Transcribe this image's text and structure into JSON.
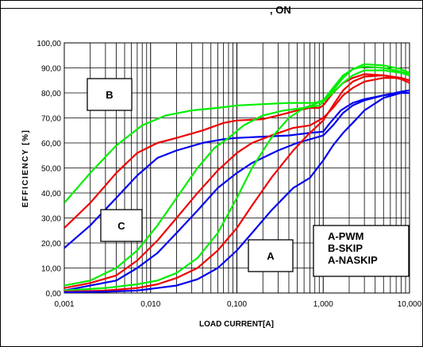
{
  "header_fragment": ", ON",
  "chart_data": {
    "type": "line",
    "x_scale": "log",
    "xlim": [
      0.001,
      10
    ],
    "ylim": [
      0,
      100
    ],
    "grid": true,
    "xlabel": "LOAD CURRENT[A]",
    "ylabel": "EFFICIENCY [%]",
    "x_tick_labels": [
      "0,001",
      "0,010",
      "0,100",
      "1,000",
      "10,000"
    ],
    "x_tick_values": [
      0.001,
      0.01,
      0.1,
      1,
      10
    ],
    "y_tick_labels": [
      "0,00",
      "10,00",
      "20,00",
      "30,00",
      "40,00",
      "50,00",
      "60,00",
      "70,00",
      "80,00",
      "90,00",
      "100,00"
    ],
    "y_tick_values": [
      0,
      10,
      20,
      30,
      40,
      50,
      60,
      70,
      80,
      90,
      100
    ],
    "box_labels": [
      "A",
      "B",
      "C"
    ],
    "legend_lines": [
      "A-PWM",
      "B-SKIP",
      "A-NASKIP"
    ],
    "series": [
      {
        "color": "#00ee00",
        "points": [
          [
            0.001,
            36
          ],
          [
            0.002,
            48
          ],
          [
            0.004,
            59
          ],
          [
            0.008,
            67
          ],
          [
            0.015,
            71
          ],
          [
            0.03,
            73
          ],
          [
            0.06,
            74
          ],
          [
            0.1,
            75
          ],
          [
            0.2,
            75.5
          ],
          [
            0.4,
            76
          ],
          [
            0.6,
            76
          ],
          [
            0.8,
            76
          ],
          [
            1,
            77
          ],
          [
            1.3,
            82
          ],
          [
            1.7,
            87
          ],
          [
            2.2,
            89.5
          ],
          [
            3,
            90.5
          ],
          [
            5,
            90
          ],
          [
            8,
            88.5
          ],
          [
            10,
            87.5
          ]
        ]
      },
      {
        "color": "#ee0000",
        "points": [
          [
            0.001,
            26
          ],
          [
            0.002,
            36
          ],
          [
            0.004,
            48
          ],
          [
            0.007,
            56
          ],
          [
            0.012,
            60
          ],
          [
            0.02,
            62
          ],
          [
            0.04,
            65
          ],
          [
            0.07,
            68
          ],
          [
            0.1,
            69
          ],
          [
            0.2,
            69.5
          ],
          [
            0.3,
            71
          ],
          [
            0.5,
            73
          ],
          [
            0.7,
            74
          ],
          [
            0.9,
            74
          ],
          [
            1,
            75
          ],
          [
            1.3,
            80
          ],
          [
            1.7,
            84
          ],
          [
            2.2,
            86
          ],
          [
            3,
            87.5
          ],
          [
            5,
            87
          ],
          [
            8,
            85.5
          ],
          [
            10,
            84
          ]
        ]
      },
      {
        "color": "#0000ee",
        "points": [
          [
            0.001,
            18
          ],
          [
            0.002,
            27
          ],
          [
            0.004,
            38
          ],
          [
            0.007,
            47
          ],
          [
            0.012,
            54
          ],
          [
            0.02,
            57
          ],
          [
            0.04,
            60
          ],
          [
            0.07,
            61.5
          ],
          [
            0.1,
            62
          ],
          [
            0.2,
            62.5
          ],
          [
            0.4,
            63
          ],
          [
            0.7,
            64
          ],
          [
            1,
            64.5
          ],
          [
            1.2,
            68
          ],
          [
            1.6,
            73
          ],
          [
            2.2,
            76
          ],
          [
            3,
            77.5
          ],
          [
            5,
            79
          ],
          [
            8,
            80
          ],
          [
            10,
            80
          ]
        ]
      },
      {
        "color": "#00ee00",
        "points": [
          [
            0.001,
            3
          ],
          [
            0.002,
            5
          ],
          [
            0.004,
            10
          ],
          [
            0.007,
            17
          ],
          [
            0.012,
            27
          ],
          [
            0.02,
            38
          ],
          [
            0.035,
            50
          ],
          [
            0.055,
            58
          ],
          [
            0.08,
            62
          ],
          [
            0.12,
            67
          ],
          [
            0.2,
            71
          ],
          [
            0.35,
            73
          ],
          [
            0.6,
            74
          ],
          [
            0.9,
            75
          ],
          [
            1.2,
            79
          ],
          [
            1.7,
            84
          ],
          [
            2.2,
            87
          ],
          [
            3,
            89
          ],
          [
            5,
            89
          ],
          [
            8,
            88
          ],
          [
            10,
            87
          ]
        ]
      },
      {
        "color": "#ee0000",
        "points": [
          [
            0.001,
            2
          ],
          [
            0.002,
            4
          ],
          [
            0.004,
            7
          ],
          [
            0.007,
            13
          ],
          [
            0.012,
            21
          ],
          [
            0.02,
            30
          ],
          [
            0.035,
            40
          ],
          [
            0.06,
            49
          ],
          [
            0.1,
            56
          ],
          [
            0.15,
            60
          ],
          [
            0.25,
            63
          ],
          [
            0.45,
            66
          ],
          [
            0.7,
            67
          ],
          [
            1,
            70
          ],
          [
            1.3,
            74
          ],
          [
            1.7,
            79
          ],
          [
            2.2,
            82
          ],
          [
            3,
            84.5
          ],
          [
            5,
            86
          ],
          [
            8,
            86
          ],
          [
            10,
            85
          ]
        ]
      },
      {
        "color": "#0000ee",
        "points": [
          [
            0.001,
            1
          ],
          [
            0.002,
            3
          ],
          [
            0.004,
            5
          ],
          [
            0.007,
            10
          ],
          [
            0.012,
            16
          ],
          [
            0.02,
            24
          ],
          [
            0.035,
            33
          ],
          [
            0.06,
            42
          ],
          [
            0.1,
            48
          ],
          [
            0.15,
            52
          ],
          [
            0.3,
            57
          ],
          [
            0.5,
            60
          ],
          [
            0.8,
            62
          ],
          [
            1,
            63
          ],
          [
            1.3,
            67
          ],
          [
            1.7,
            72
          ],
          [
            2.2,
            75
          ],
          [
            3,
            77
          ],
          [
            5,
            79
          ],
          [
            8,
            80.5
          ],
          [
            10,
            81
          ]
        ]
      },
      {
        "color": "#00ee00",
        "points": [
          [
            0.001,
            1
          ],
          [
            0.003,
            2
          ],
          [
            0.007,
            3.5
          ],
          [
            0.012,
            5
          ],
          [
            0.02,
            8
          ],
          [
            0.035,
            14
          ],
          [
            0.06,
            24
          ],
          [
            0.1,
            38
          ],
          [
            0.15,
            50
          ],
          [
            0.25,
            62
          ],
          [
            0.4,
            70
          ],
          [
            0.6,
            74
          ],
          [
            0.8,
            75.5
          ],
          [
            1,
            77
          ],
          [
            1.3,
            81
          ],
          [
            1.7,
            86
          ],
          [
            2.2,
            89.5
          ],
          [
            3,
            91.5
          ],
          [
            5,
            91
          ],
          [
            8,
            89.5
          ],
          [
            10,
            88
          ]
        ]
      },
      {
        "color": "#ee0000",
        "points": [
          [
            0.001,
            0.5
          ],
          [
            0.003,
            1
          ],
          [
            0.007,
            2
          ],
          [
            0.012,
            3.5
          ],
          [
            0.02,
            6
          ],
          [
            0.035,
            10
          ],
          [
            0.06,
            17
          ],
          [
            0.1,
            26
          ],
          [
            0.15,
            35
          ],
          [
            0.25,
            46
          ],
          [
            0.45,
            57
          ],
          [
            0.7,
            64
          ],
          [
            1,
            69
          ],
          [
            1.3,
            75
          ],
          [
            1.7,
            81
          ],
          [
            2.2,
            84.5
          ],
          [
            3,
            86.5
          ],
          [
            5,
            87
          ],
          [
            8,
            86
          ],
          [
            10,
            85
          ]
        ]
      },
      {
        "color": "#0000ee",
        "points": [
          [
            0.001,
            0.3
          ],
          [
            0.003,
            0.5
          ],
          [
            0.007,
            1
          ],
          [
            0.012,
            2
          ],
          [
            0.02,
            3
          ],
          [
            0.035,
            5.5
          ],
          [
            0.06,
            10
          ],
          [
            0.1,
            17
          ],
          [
            0.15,
            24
          ],
          [
            0.25,
            33
          ],
          [
            0.45,
            42
          ],
          [
            0.7,
            46
          ],
          [
            1,
            53
          ],
          [
            1.3,
            59
          ],
          [
            1.7,
            64
          ],
          [
            2.2,
            68
          ],
          [
            3,
            73
          ],
          [
            5,
            78
          ],
          [
            8,
            80
          ],
          [
            10,
            80
          ]
        ]
      }
    ]
  }
}
